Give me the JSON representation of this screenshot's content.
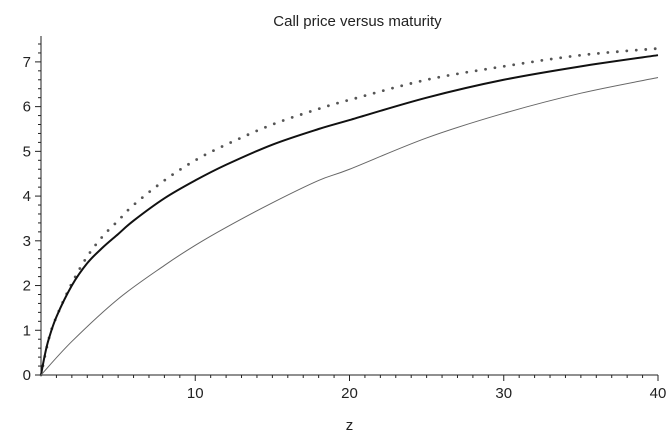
{
  "chart_data": {
    "type": "line",
    "title": "Call price versus maturity",
    "xlabel": "z",
    "ylabel": "",
    "xlim": [
      0,
      40
    ],
    "ylim": [
      0,
      7.4
    ],
    "x_ticks": [
      10,
      20,
      30,
      40
    ],
    "y_ticks": [
      0,
      1,
      2,
      3,
      4,
      5,
      6,
      7
    ],
    "grid": false,
    "series": [
      {
        "style": "dotted",
        "color": "#555555",
        "x": [
          0,
          0.5,
          1,
          2,
          3,
          4,
          5,
          6,
          8,
          10,
          12,
          15,
          18,
          20,
          25,
          30,
          35,
          40
        ],
        "y": [
          0,
          0.8,
          1.3,
          2.05,
          2.65,
          3.1,
          3.45,
          3.8,
          4.35,
          4.8,
          5.15,
          5.6,
          5.95,
          6.15,
          6.6,
          6.9,
          7.15,
          7.3
        ]
      },
      {
        "style": "solid-thick",
        "color": "#111111",
        "x": [
          0,
          0.25,
          0.5,
          1,
          2,
          3,
          4,
          5,
          6,
          8,
          10,
          12,
          15,
          18,
          20,
          25,
          30,
          35,
          40
        ],
        "y": [
          0,
          0.45,
          0.8,
          1.3,
          2.0,
          2.5,
          2.85,
          3.15,
          3.45,
          3.95,
          4.35,
          4.7,
          5.15,
          5.5,
          5.7,
          6.2,
          6.6,
          6.9,
          7.15
        ]
      },
      {
        "style": "solid-thin",
        "color": "#666666",
        "x": [
          0,
          2,
          5,
          8,
          10,
          12,
          15,
          18,
          20,
          25,
          30,
          35,
          40
        ],
        "y": [
          0,
          0.75,
          1.7,
          2.45,
          2.9,
          3.3,
          3.85,
          4.35,
          4.6,
          5.3,
          5.85,
          6.3,
          6.65
        ]
      }
    ]
  }
}
